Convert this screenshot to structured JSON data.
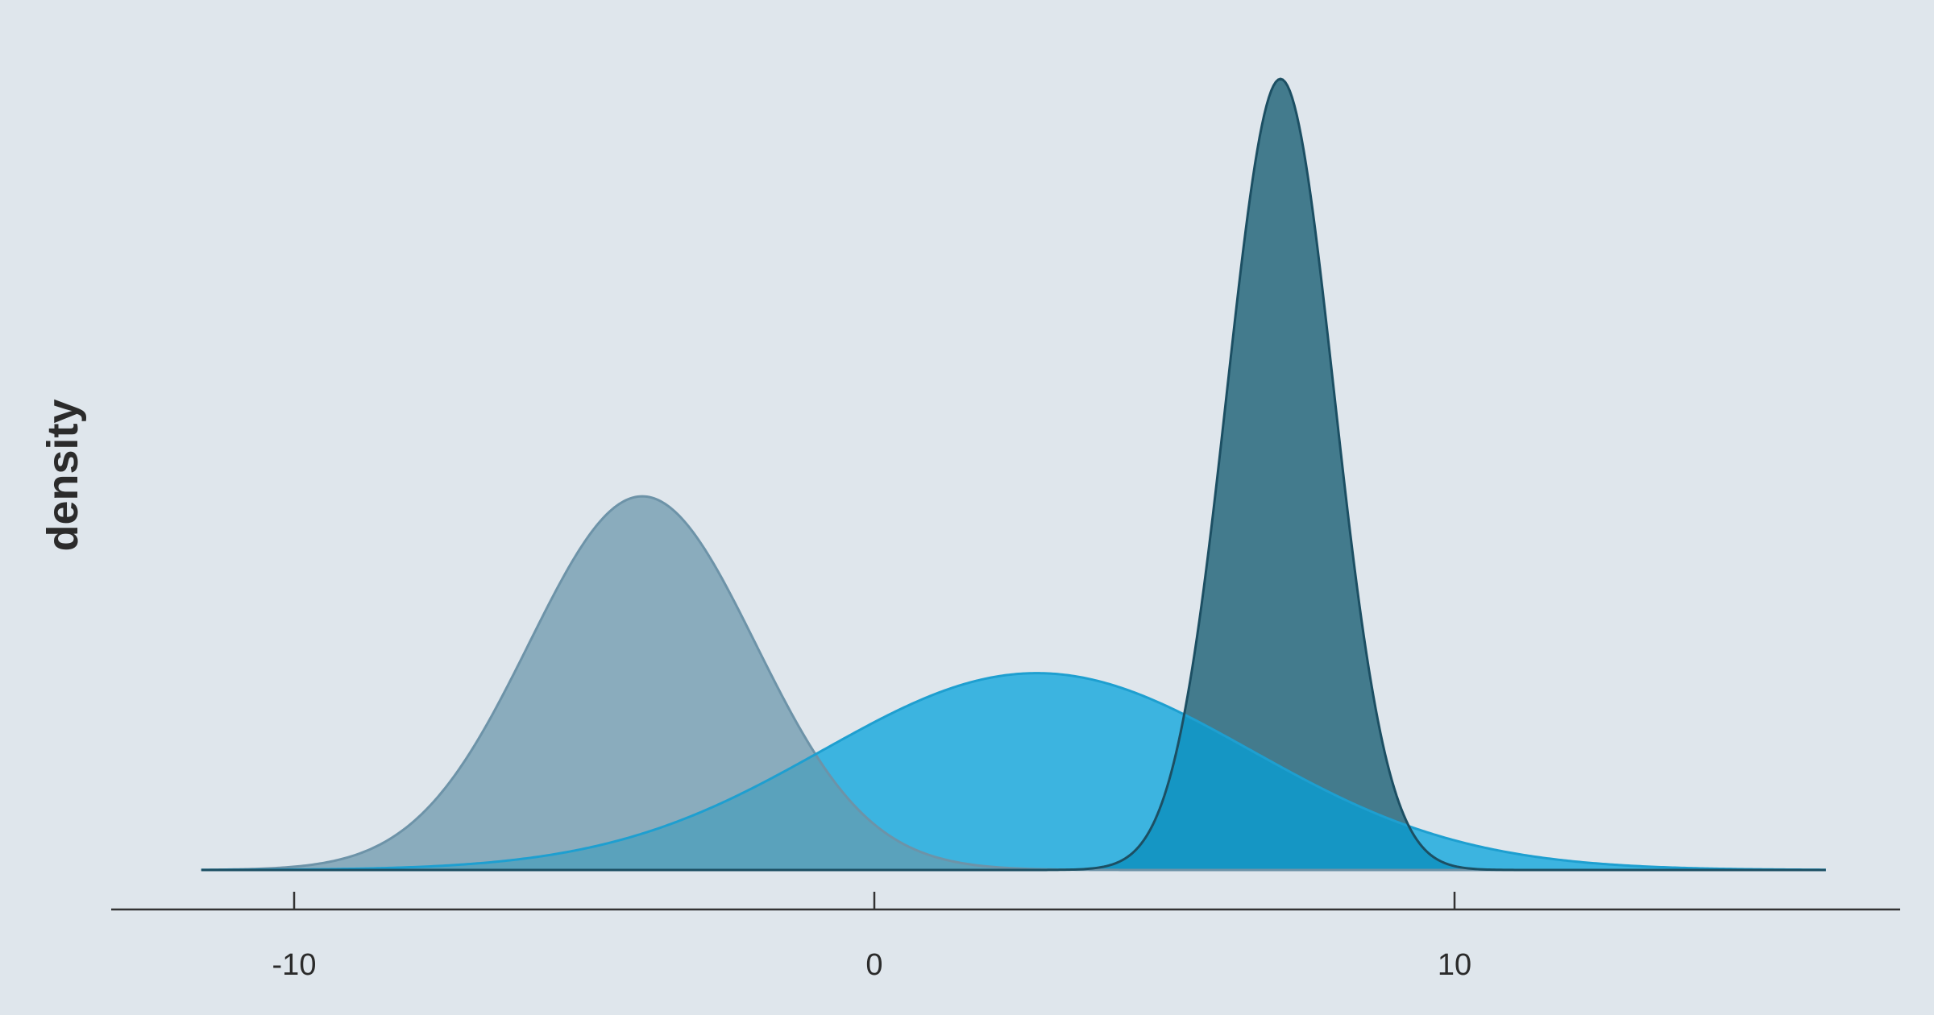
{
  "chart_data": {
    "type": "area",
    "subtype": "density",
    "title": "",
    "xlabel": "",
    "ylabel": "density",
    "xlim": [
      -15.7,
      15.2
    ],
    "ylim": [
      0,
      0.42
    ],
    "x_ticks": [
      -10,
      0,
      10
    ],
    "x_tick_labels": [
      "-10",
      "0",
      "10"
    ],
    "y_ticks_visible": false,
    "grid": false,
    "legend": "none",
    "background_color": "#dfe6ec",
    "x_range": [
      -11.6,
      16.4
    ],
    "series": [
      {
        "mean": -4.0,
        "sd": 1.95,
        "fill": "#8aacbd",
        "stroke": "#6d93a8",
        "peak_density": 0.205
      },
      {
        "mean": 2.8,
        "sd": 3.7,
        "fill": "#3cb4e0",
        "stroke": "#1e9fd0",
        "peak_density": 0.108
      },
      {
        "mean": 7.0,
        "sd": 0.92,
        "fill": "#437b8d",
        "stroke": "#1c4f63",
        "peak_density": 0.434
      }
    ],
    "overlap_colors": {
      "blue_over_gray": "#5aa2bc",
      "blue_over_dark": "#1596c4"
    }
  }
}
